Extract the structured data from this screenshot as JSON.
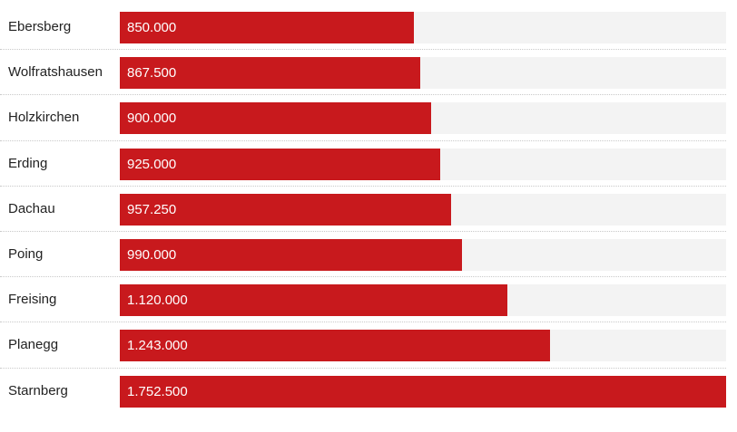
{
  "chart_data": {
    "type": "bar",
    "orientation": "horizontal",
    "categories": [
      "Ebersberg",
      "Wolfratshausen",
      "Holzkirchen",
      "Erding",
      "Dachau",
      "Poing",
      "Freising",
      "Planegg",
      "Starnberg"
    ],
    "values": [
      850000,
      867500,
      900000,
      925000,
      957250,
      990000,
      1120000,
      1243000,
      1752500
    ],
    "value_labels": [
      "850.000",
      "867.500",
      "900.000",
      "925.000",
      "957.250",
      "990.000",
      "1.120.000",
      "1.243.000",
      "1.752.500"
    ],
    "xlim": [
      0,
      1752500
    ],
    "grid": false,
    "colors": {
      "bar": "#c8191d",
      "track": "#f3f3f3",
      "divider": "#c9c9c9"
    }
  }
}
